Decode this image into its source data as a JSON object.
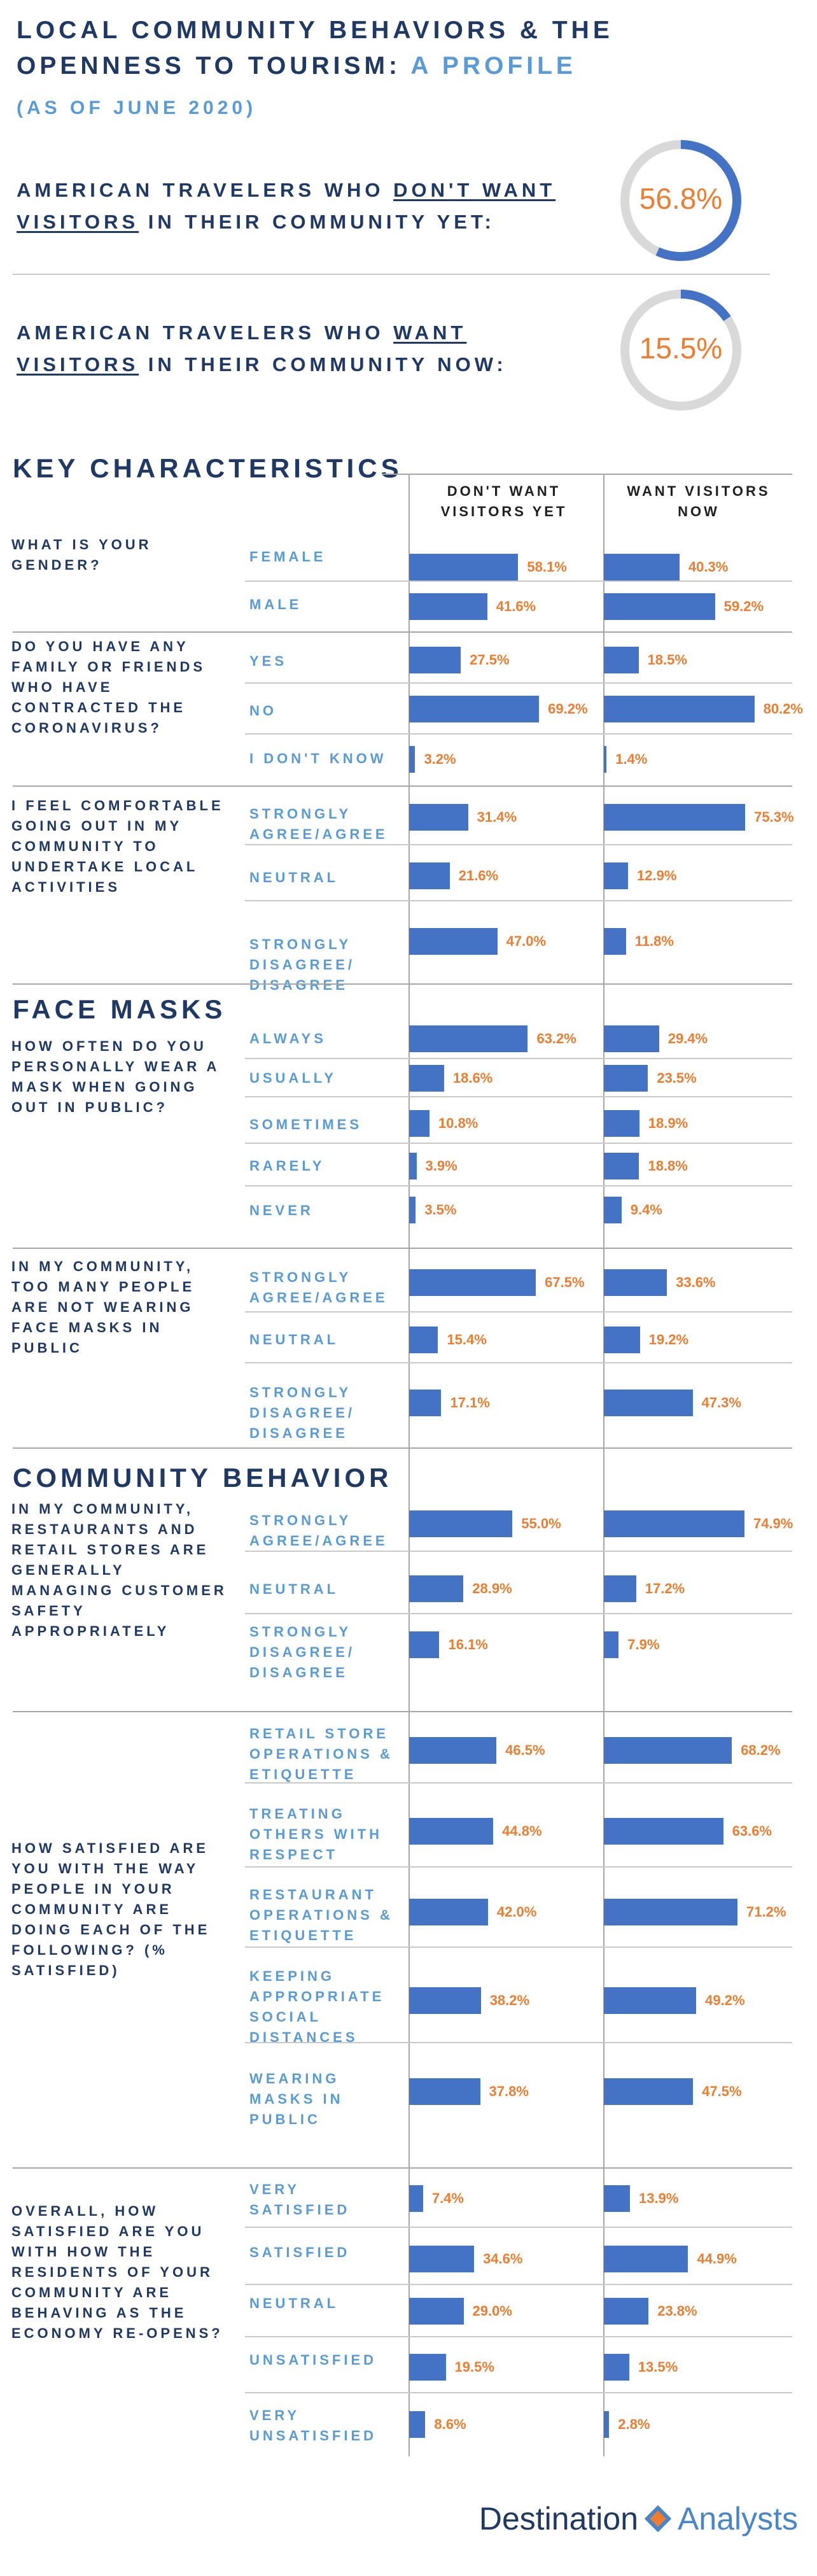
{
  "title": {
    "line1": "LOCAL COMMUNITY BEHAVIORS & THE",
    "line2_part1": "OPENNESS TO TOURISM:",
    "line2_part2": "A PROFILE",
    "date": "(AS OF JUNE 2020)"
  },
  "stats": [
    {
      "pre": "AMERICAN TRAVELERS WHO",
      "emph": "DON'T WANT",
      "emph2": "VISITORS",
      "post": "IN THEIR COMMUNITY YET:",
      "value": "56.8%",
      "fraction": 0.568
    },
    {
      "pre": "AMERICAN TRAVELERS WHO",
      "emph": "WANT",
      "emph2": "VISITORS",
      "post": "IN THEIR COMMUNITY NOW:",
      "value": "15.5%",
      "fraction": 0.155
    }
  ],
  "columns": {
    "col1": "DON'T WANT VISITORS YET",
    "col2": "WANT VISITORS NOW"
  },
  "sections": {
    "key": "KEY CHARACTERISTICS",
    "masks": "FACE MASKS",
    "community": "COMMUNITY BEHAVIOR"
  },
  "colors": {
    "title": "#1f3864",
    "accent": "#5b9bd5",
    "bar": "#4472c4",
    "value": "#ed7d31",
    "donut_track": "#d9d9d9",
    "donut_fill": "#4472c4"
  },
  "brand": {
    "part1": "Destination",
    "part2": "Analysts"
  },
  "chart_data": {
    "type": "bar",
    "orientation": "horizontal",
    "series_names": [
      "DON'T WANT VISITORS YET",
      "WANT VISITORS NOW"
    ],
    "x_max": 100,
    "questions": [
      {
        "question": "WHAT IS YOUR GENDER?",
        "rows": [
          {
            "label": "FEMALE",
            "v1": 58.1,
            "v2": 40.3
          },
          {
            "label": "MALE",
            "v1": 41.6,
            "v2": 59.2
          }
        ]
      },
      {
        "question": "DO YOU HAVE ANY FAMILY OR FRIENDS WHO HAVE CONTRACTED THE CORONAVIRUS?",
        "rows": [
          {
            "label": "YES",
            "v1": 27.5,
            "v2": 18.5
          },
          {
            "label": "NO",
            "v1": 69.2,
            "v2": 80.2
          },
          {
            "label": "I DON'T KNOW",
            "v1": 3.2,
            "v2": 1.4
          }
        ]
      },
      {
        "question": "I FEEL COMFORTABLE GOING OUT IN MY COMMUNITY TO UNDERTAKE LOCAL ACTIVITIES",
        "rows": [
          {
            "label": "STRONGLY AGREE/AGREE",
            "v1": 31.4,
            "v2": 75.3
          },
          {
            "label": "NEUTRAL",
            "v1": 21.6,
            "v2": 12.9
          },
          {
            "label": "STRONGLY DISAGREE/ DISAGREE",
            "v1": 47.0,
            "v2": 11.8
          }
        ]
      },
      {
        "question": "HOW OFTEN DO YOU PERSONALLY WEAR A MASK WHEN GOING OUT IN PUBLIC?",
        "rows": [
          {
            "label": "ALWAYS",
            "v1": 63.2,
            "v2": 29.4
          },
          {
            "label": "USUALLY",
            "v1": 18.6,
            "v2": 23.5
          },
          {
            "label": "SOMETIMES",
            "v1": 10.8,
            "v2": 18.9
          },
          {
            "label": "RARELY",
            "v1": 3.9,
            "v2": 18.8
          },
          {
            "label": "NEVER",
            "v1": 3.5,
            "v2": 9.4
          }
        ]
      },
      {
        "question": "IN MY COMMUNITY, TOO MANY PEOPLE ARE NOT WEARING FACE MASKS IN PUBLIC",
        "rows": [
          {
            "label": "STRONGLY AGREE/AGREE",
            "v1": 67.5,
            "v2": 33.6
          },
          {
            "label": "NEUTRAL",
            "v1": 15.4,
            "v2": 19.2
          },
          {
            "label": "STRONGLY DISAGREE/ DISAGREE",
            "v1": 17.1,
            "v2": 47.3
          }
        ]
      },
      {
        "question": "IN MY COMMUNITY, RESTAURANTS AND RETAIL STORES ARE GENERALLY MANAGING CUSTOMER SAFETY APPROPRIATELY",
        "rows": [
          {
            "label": "STRONGLY AGREE/AGREE",
            "v1": 55.0,
            "v2": 74.9
          },
          {
            "label": "NEUTRAL",
            "v1": 28.9,
            "v2": 17.2
          },
          {
            "label": "STRONGLY DISAGREE/ DISAGREE",
            "v1": 16.1,
            "v2": 7.9
          }
        ]
      },
      {
        "question": "HOW SATISFIED ARE YOU WITH THE WAY PEOPLE IN YOUR COMMUNITY ARE DOING EACH OF THE FOLLOWING? (% SATISFIED)",
        "rows": [
          {
            "label": "RETAIL STORE OPERATIONS & ETIQUETTE",
            "v1": 46.5,
            "v2": 68.2
          },
          {
            "label": "TREATING OTHERS WITH RESPECT",
            "v1": 44.8,
            "v2": 63.6
          },
          {
            "label": "RESTAURANT OPERATIONS & ETIQUETTE",
            "v1": 42.0,
            "v2": 71.2
          },
          {
            "label": "KEEPING APPROPRIATE SOCIAL DISTANCES",
            "v1": 38.2,
            "v2": 49.2
          },
          {
            "label": "WEARING MASKS IN PUBLIC",
            "v1": 37.8,
            "v2": 47.5
          }
        ]
      },
      {
        "question": "OVERALL, HOW SATISFIED ARE YOU WITH HOW THE RESIDENTS OF YOUR COMMUNITY ARE BEHAVING AS THE ECONOMY RE-OPENS?",
        "rows": [
          {
            "label": "VERY SATISFIED",
            "v1": 7.4,
            "v2": 13.9
          },
          {
            "label": "SATISFIED",
            "v1": 34.6,
            "v2": 44.9
          },
          {
            "label": "NEUTRAL",
            "v1": 29.0,
            "v2": 23.8
          },
          {
            "label": "UNSATISFIED",
            "v1": 19.5,
            "v2": 13.5
          },
          {
            "label": "VERY UNSATISFIED",
            "v1": 8.6,
            "v2": 2.8
          }
        ]
      }
    ]
  }
}
